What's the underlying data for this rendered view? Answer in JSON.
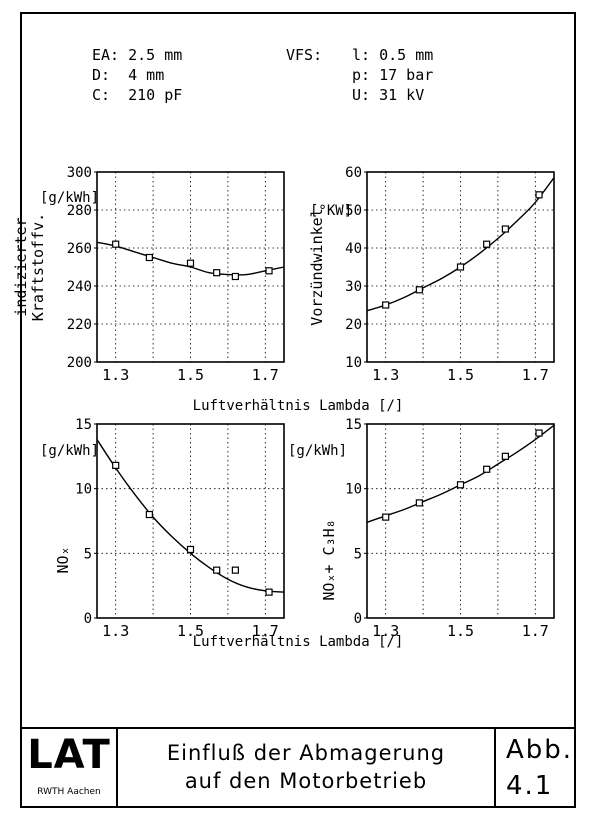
{
  "params": {
    "ea": "EA: 2.5 mm",
    "d": "D:  4 mm",
    "c": "C:  210 pF",
    "vfs_label": "VFS:",
    "l": "l: 0.5 mm",
    "p": "p: 17 bar",
    "u": "U: 31 kV"
  },
  "shared_xlabel": "Luftverhältnis Lambda [/]",
  "footer": {
    "logo": "LAT",
    "logo_sub": "RWTH Aachen",
    "title_line1": "Einfluß der Abmagerung",
    "title_line2": "auf den Motorbetrieb",
    "abb_label": "Abb.",
    "abb_number": "4.1"
  },
  "colors": {
    "ink": "#000000",
    "grid": "#000000",
    "background": "#ffffff"
  },
  "chart_data": [
    {
      "id": "fuel",
      "type": "scatter",
      "title": "",
      "xlabel": "Luftverhältnis Lambda [/]",
      "ylabel_line1": "indizierter",
      "ylabel_line2": "Kraftstoffv.",
      "unit_label": "[g/kWh]",
      "xlim": [
        1.25,
        1.75
      ],
      "ylim": [
        200,
        300
      ],
      "x_ticks": [
        1.3,
        1.5,
        1.7
      ],
      "y_ticks": [
        200,
        220,
        240,
        260,
        280,
        300
      ],
      "x_gridlines": [
        1.3,
        1.4,
        1.5,
        1.6,
        1.7
      ],
      "points": [
        [
          1.3,
          262
        ],
        [
          1.39,
          255
        ],
        [
          1.5,
          252
        ],
        [
          1.57,
          247
        ],
        [
          1.62,
          245
        ],
        [
          1.71,
          248
        ]
      ],
      "fit_curve": [
        [
          1.25,
          263
        ],
        [
          1.3,
          261
        ],
        [
          1.35,
          258
        ],
        [
          1.4,
          255
        ],
        [
          1.45,
          252
        ],
        [
          1.5,
          250
        ],
        [
          1.55,
          247
        ],
        [
          1.6,
          246
        ],
        [
          1.65,
          246
        ],
        [
          1.7,
          248
        ],
        [
          1.75,
          250
        ]
      ]
    },
    {
      "id": "timing",
      "type": "scatter",
      "title": "",
      "xlabel": "Luftverhältnis Lambda [/]",
      "ylabel_line1": "Vorzündwinkel",
      "ylabel_line2": "",
      "unit_label": "[°KW]",
      "xlim": [
        1.25,
        1.75
      ],
      "ylim": [
        10,
        60
      ],
      "x_ticks": [
        1.3,
        1.5,
        1.7
      ],
      "y_ticks": [
        10,
        20,
        30,
        40,
        50,
        60
      ],
      "x_gridlines": [
        1.3,
        1.4,
        1.5,
        1.6,
        1.7
      ],
      "points": [
        [
          1.3,
          25
        ],
        [
          1.39,
          29
        ],
        [
          1.5,
          35
        ],
        [
          1.57,
          41
        ],
        [
          1.62,
          45
        ],
        [
          1.71,
          54
        ]
      ],
      "fit_curve": [
        [
          1.25,
          23.5
        ],
        [
          1.3,
          25
        ],
        [
          1.35,
          27
        ],
        [
          1.4,
          29.5
        ],
        [
          1.45,
          32
        ],
        [
          1.5,
          35
        ],
        [
          1.55,
          38.5
        ],
        [
          1.6,
          42.5
        ],
        [
          1.65,
          47
        ],
        [
          1.7,
          52
        ],
        [
          1.75,
          58.5
        ]
      ]
    },
    {
      "id": "nox",
      "type": "scatter",
      "title": "",
      "xlabel": "Luftverhältnis Lambda [/]",
      "ylabel_line1": "NOₓ",
      "ylabel_line2": "",
      "unit_label": "[g/kWh]",
      "xlim": [
        1.25,
        1.75
      ],
      "ylim": [
        0,
        15
      ],
      "x_ticks": [
        1.3,
        1.5,
        1.7
      ],
      "y_ticks": [
        0,
        5,
        10,
        15
      ],
      "x_gridlines": [
        1.3,
        1.4,
        1.5,
        1.6,
        1.7
      ],
      "points": [
        [
          1.3,
          11.8
        ],
        [
          1.39,
          8.0
        ],
        [
          1.5,
          5.3
        ],
        [
          1.57,
          3.7
        ],
        [
          1.62,
          3.7
        ],
        [
          1.71,
          2.0
        ]
      ],
      "fit_curve": [
        [
          1.25,
          13.8
        ],
        [
          1.3,
          11.6
        ],
        [
          1.35,
          9.6
        ],
        [
          1.4,
          7.8
        ],
        [
          1.45,
          6.3
        ],
        [
          1.5,
          5.0
        ],
        [
          1.55,
          3.9
        ],
        [
          1.6,
          3.0
        ],
        [
          1.65,
          2.4
        ],
        [
          1.7,
          2.1
        ],
        [
          1.75,
          2.0
        ]
      ]
    },
    {
      "id": "nox_hc",
      "type": "scatter",
      "title": "",
      "xlabel": "Luftverhältnis Lambda [/]",
      "ylabel_line1": "NOₓ+ C₃H₈",
      "ylabel_line2": "",
      "unit_label": "[g/kWh]",
      "xlim": [
        1.25,
        1.75
      ],
      "ylim": [
        0,
        15
      ],
      "x_ticks": [
        1.3,
        1.5,
        1.7
      ],
      "y_ticks": [
        0,
        5,
        10,
        15
      ],
      "x_gridlines": [
        1.3,
        1.4,
        1.5,
        1.6,
        1.7
      ],
      "points": [
        [
          1.3,
          7.8
        ],
        [
          1.39,
          8.9
        ],
        [
          1.5,
          10.3
        ],
        [
          1.57,
          11.5
        ],
        [
          1.62,
          12.5
        ],
        [
          1.71,
          14.3
        ]
      ],
      "fit_curve": [
        [
          1.25,
          7.4
        ],
        [
          1.3,
          7.9
        ],
        [
          1.35,
          8.4
        ],
        [
          1.4,
          9.0
        ],
        [
          1.45,
          9.6
        ],
        [
          1.5,
          10.3
        ],
        [
          1.55,
          11.0
        ],
        [
          1.6,
          11.9
        ],
        [
          1.65,
          12.8
        ],
        [
          1.7,
          13.8
        ],
        [
          1.75,
          14.9
        ]
      ]
    }
  ]
}
